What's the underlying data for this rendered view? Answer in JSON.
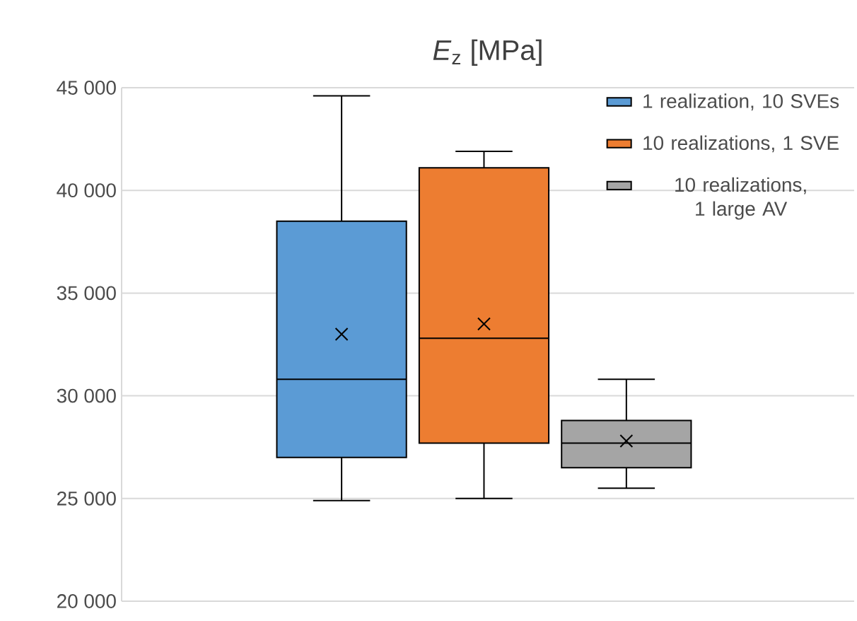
{
  "chart_data": {
    "type": "box",
    "title": "*E*$_{z}$ [MPa]",
    "categories": [
      null
    ],
    "series": [
      {
        "name": "1 realization, 10 SVEs",
        "color": "#5b9bd5",
        "boxes": [
          {
            "low": 24900,
            "q1": 27000,
            "median": 30800,
            "q3": 38500,
            "high": 44600,
            "mean": 33000
          }
        ]
      },
      {
        "name": "10 realizations, 1 SVE",
        "color": "#ed7d31",
        "boxes": [
          {
            "low": 25000,
            "q1": 27700,
            "median": 32800,
            "q3": 41100,
            "high": 41900,
            "mean": 33500
          }
        ]
      },
      {
        "name": "10 realizations, 1 large AV",
        "color": "#a5a5a5",
        "boxes": [
          {
            "low": 25500,
            "q1": 26500,
            "median": 27700,
            "q3": 28800,
            "high": 30800,
            "mean": 27800
          }
        ]
      }
    ],
    "ylim": [
      20000,
      45000
    ],
    "yticks": [
      {
        "value": 20000,
        "label": "20 000"
      },
      {
        "value": 25000,
        "label": "25 000"
      },
      {
        "value": 30000,
        "label": "30 000"
      },
      {
        "value": 35000,
        "label": "35 000"
      },
      {
        "value": 40000,
        "label": "40 000"
      },
      {
        "value": 45000,
        "label": "45 000"
      }
    ],
    "grid": "y",
    "legend": "top right"
  }
}
